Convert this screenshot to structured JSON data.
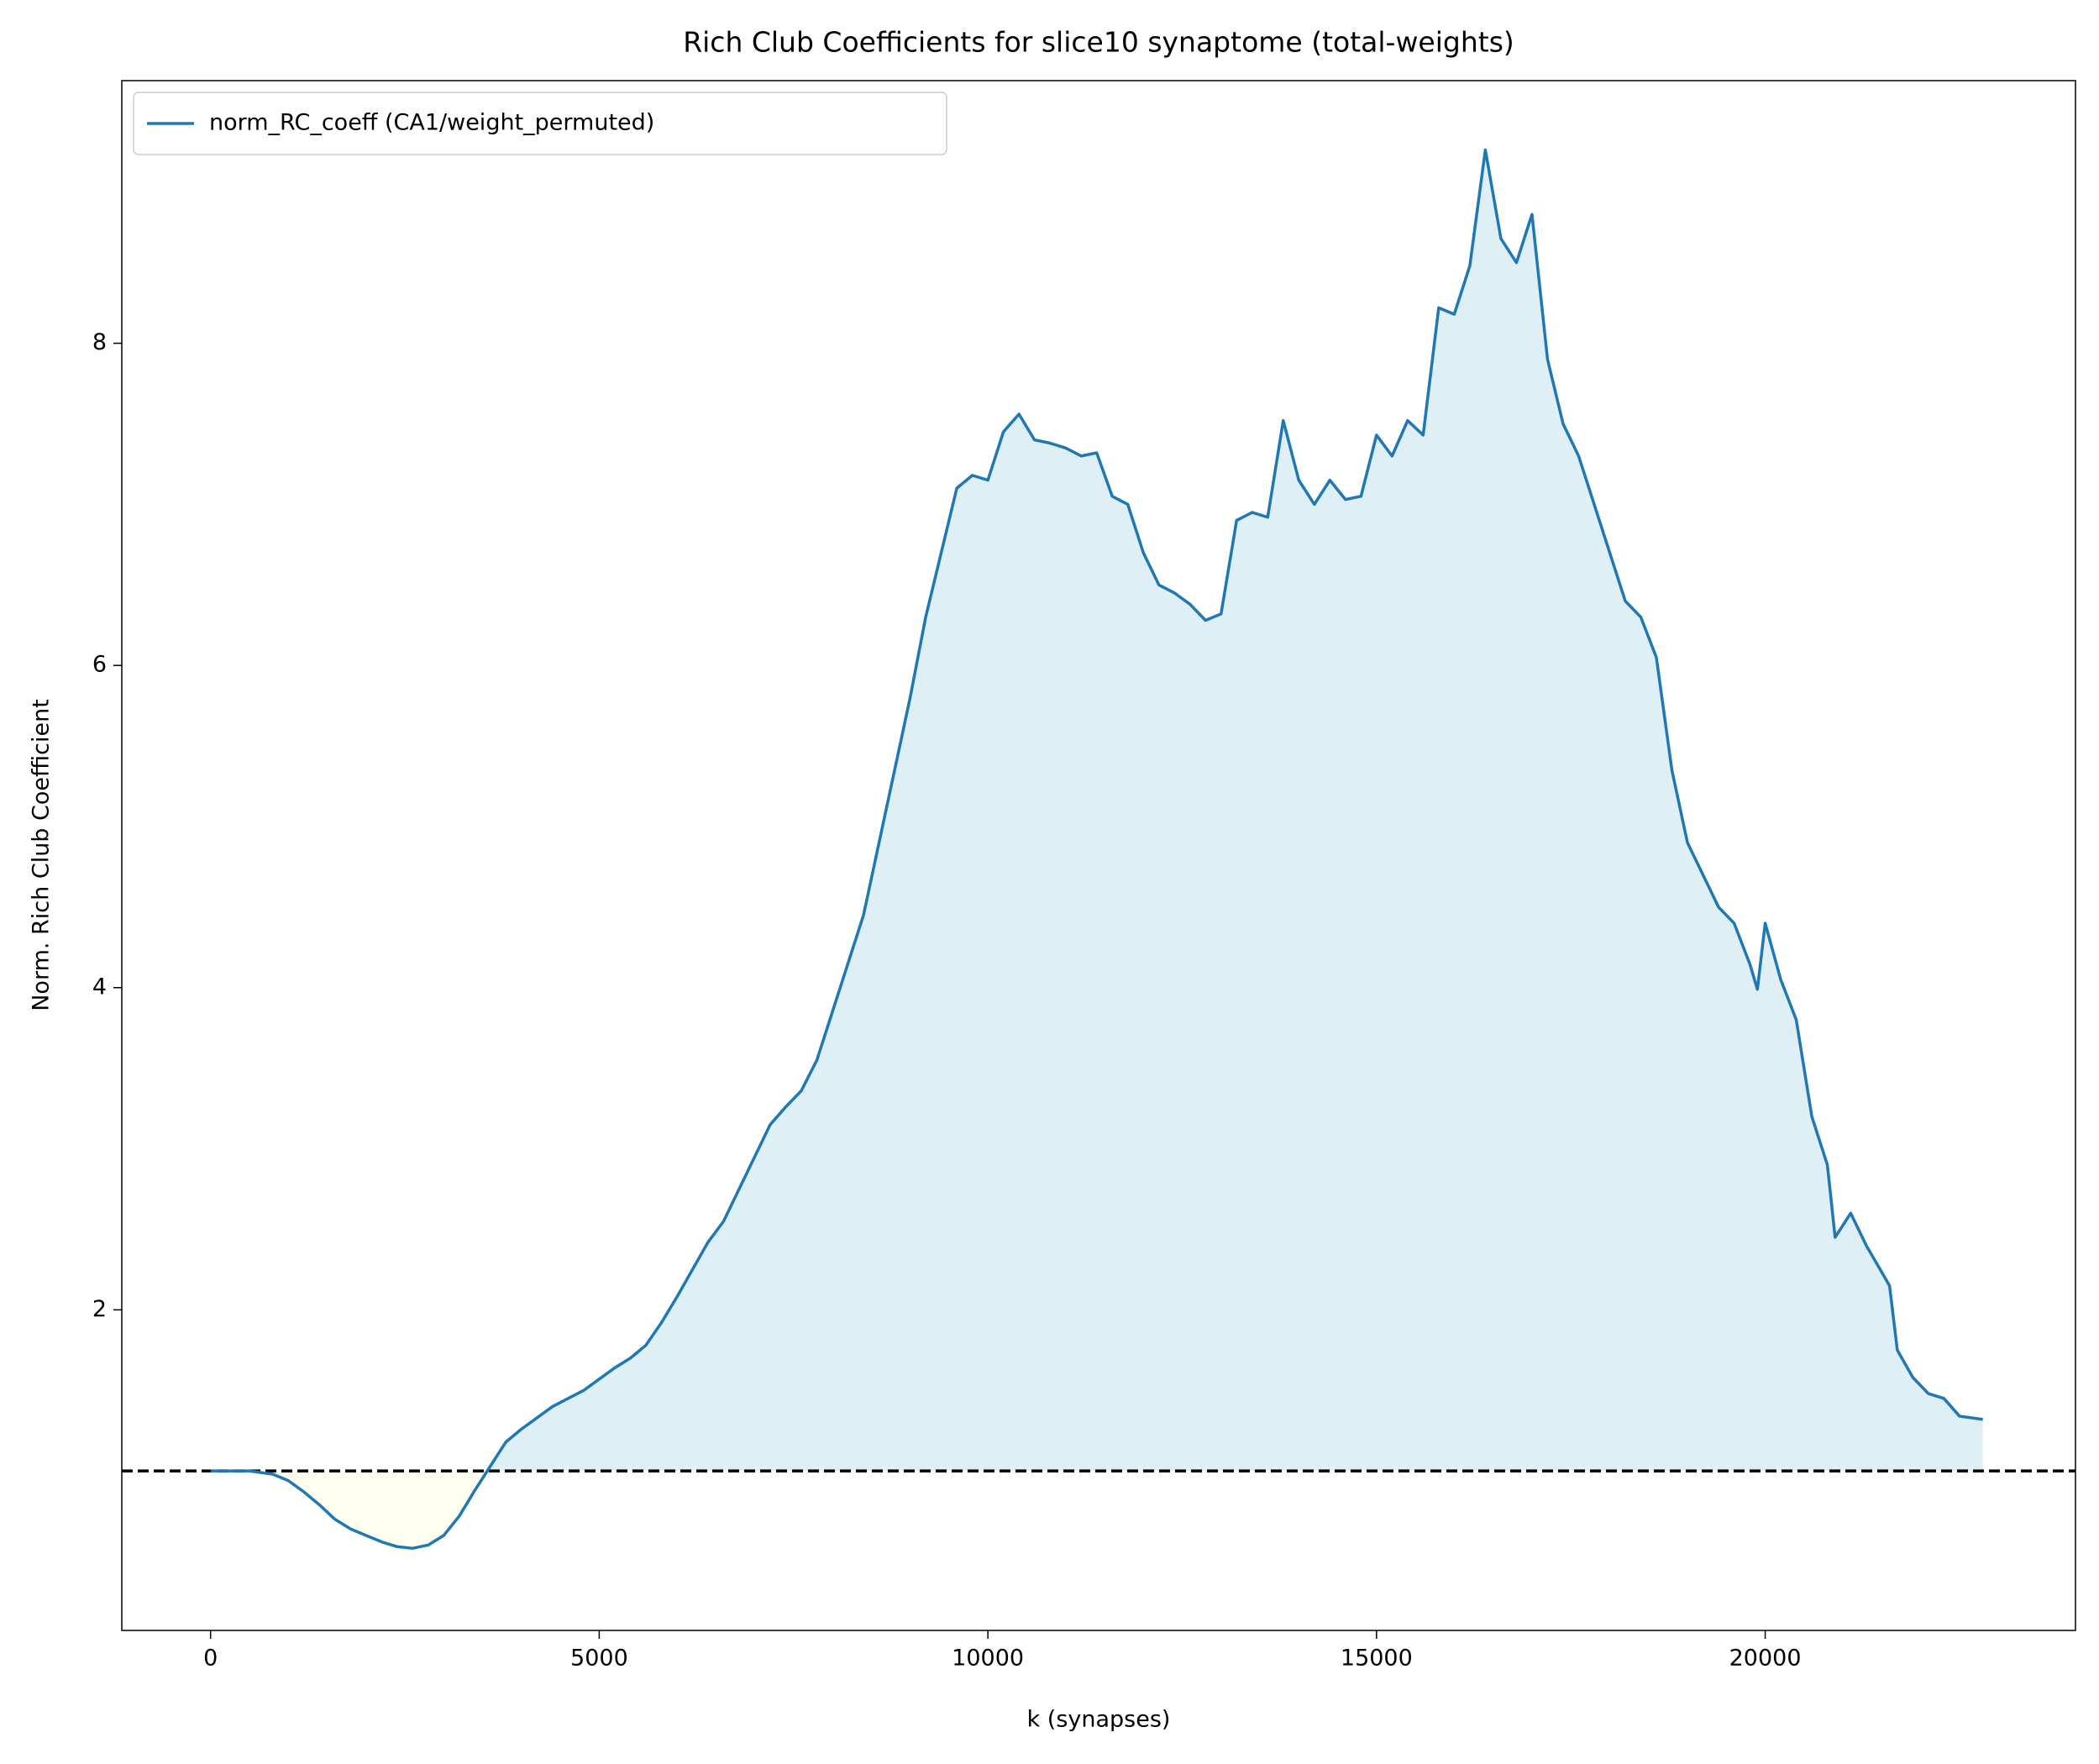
{
  "chart_data": {
    "type": "line",
    "title": "Rich Club Coefficients for slice10 synaptome (total-weights)",
    "x_label": "k (synapses)",
    "y_label": "Norm. Rich Club Coefficient",
    "x": [
      0,
      500,
      800,
      1000,
      1200,
      1400,
      1600,
      1800,
      2000,
      2200,
      2400,
      2600,
      2800,
      3000,
      3200,
      3400,
      3600,
      3800,
      4000,
      4200,
      4400,
      4600,
      4800,
      5000,
      5200,
      5400,
      5600,
      5800,
      6000,
      6200,
      6400,
      6600,
      6800,
      7000,
      7200,
      7400,
      7600,
      7800,
      8000,
      8200,
      8400,
      8600,
      8800,
      9000,
      9200,
      9400,
      9600,
      9800,
      10000,
      10200,
      10400,
      10600,
      10800,
      11000,
      11200,
      11400,
      11600,
      11800,
      12000,
      12200,
      12400,
      12600,
      12800,
      13000,
      13200,
      13400,
      13600,
      13800,
      14000,
      14200,
      14400,
      14600,
      14800,
      15000,
      15200,
      15400,
      15600,
      15800,
      16000,
      16200,
      16400,
      16600,
      16800,
      17000,
      17200,
      17400,
      17600,
      17800,
      18000,
      18200,
      18400,
      18600,
      18800,
      19000,
      19200,
      19400,
      19600,
      19800,
      19900,
      20000,
      20200,
      20400,
      20600,
      20800,
      20900,
      21100,
      21300,
      21600,
      21700,
      21900,
      22100,
      22300,
      22500,
      22800
    ],
    "series": [
      {
        "name": "norm_RC_coeff (CA1/weight_permuted)",
        "color": "#1f77b4",
        "values": [
          1.0,
          1.0,
          0.98,
          0.94,
          0.87,
          0.79,
          0.7,
          0.64,
          0.6,
          0.56,
          0.53,
          0.52,
          0.54,
          0.6,
          0.72,
          0.88,
          1.03,
          1.18,
          1.26,
          1.33,
          1.4,
          1.45,
          1.5,
          1.57,
          1.64,
          1.7,
          1.78,
          1.92,
          2.08,
          2.25,
          2.42,
          2.55,
          2.75,
          2.95,
          3.15,
          3.26,
          3.36,
          3.55,
          3.85,
          4.15,
          4.45,
          4.9,
          5.35,
          5.8,
          6.3,
          6.7,
          7.1,
          7.18,
          7.15,
          7.45,
          7.56,
          7.4,
          7.38,
          7.35,
          7.3,
          7.32,
          7.05,
          7.0,
          6.7,
          6.5,
          6.45,
          6.38,
          6.28,
          6.32,
          6.9,
          6.95,
          6.92,
          7.52,
          7.15,
          7.0,
          7.15,
          7.03,
          7.05,
          7.43,
          7.3,
          7.52,
          7.43,
          8.22,
          8.18,
          8.48,
          9.2,
          8.65,
          8.5,
          8.8,
          7.9,
          7.5,
          7.3,
          7.0,
          6.7,
          6.4,
          6.3,
          6.05,
          5.35,
          4.9,
          4.7,
          4.5,
          4.4,
          4.15,
          3.99,
          4.4,
          4.05,
          3.8,
          3.2,
          2.9,
          2.45,
          2.6,
          2.4,
          2.15,
          1.75,
          1.58,
          1.48,
          1.45,
          1.34,
          1.32
        ]
      }
    ],
    "reference_line": 1,
    "fill_above_color": "#deeff6",
    "fill_below_color": "#fffff0",
    "xlim": [
      -1142,
      23992
    ],
    "ylim": [
      0.01,
      9.63
    ],
    "xticks": [
      0,
      5000,
      10000,
      15000,
      20000
    ],
    "yticks": [
      2,
      4,
      6,
      8
    ],
    "legend": "upper left"
  }
}
